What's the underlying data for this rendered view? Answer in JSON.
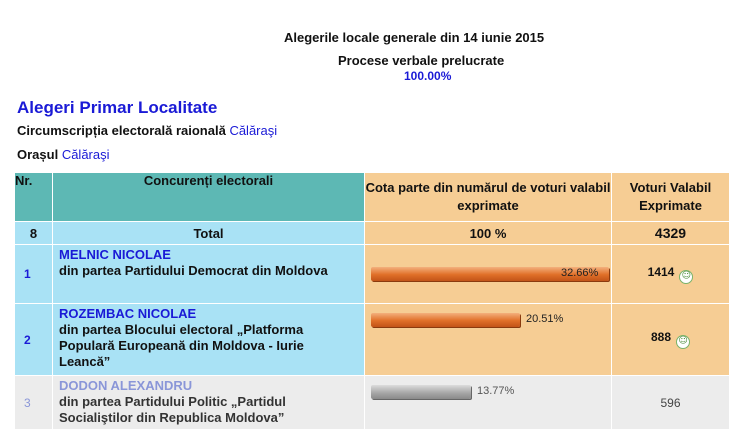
{
  "header": {
    "title": "Alegerile locale generale din 14 iunie 2015",
    "subtitle": "Procese verbale prelucrate",
    "processed_percent": "100.00%"
  },
  "section": {
    "title": "Alegeri Primar Localitate",
    "circumscription_label": "Circumscripția electorală raională",
    "circumscription_value": "Călăraşi",
    "city_label": "Orașul",
    "city_value": "Călăraşi"
  },
  "table": {
    "headers": {
      "nr": "Nr.",
      "competitors": "Concurenți electorali",
      "share": "Cota parte din numărul de voturi valabil exprimate",
      "votes": "Voturi Valabil Exprimate"
    },
    "total": {
      "nr": "8",
      "label": "Total",
      "share": "100 %",
      "votes": "4329"
    },
    "candidates": [
      {
        "nr": "1",
        "name": "MELNIC NICOLAE",
        "party": "din partea Partidului Democrat din Moldova",
        "share_label": "32.66%",
        "share": 32.66,
        "votes": "1414",
        "advancing": true,
        "icon": "smiley-icon"
      },
      {
        "nr": "2",
        "name": "ROZEMBAC NICOLAE",
        "party": "din partea Blocului electoral „Platforma Populară Europeană din Moldova - Iurie Leancă”",
        "share_label": "20.51%",
        "share": 20.51,
        "votes": "888",
        "advancing": true,
        "icon": "smiley-icon"
      },
      {
        "nr": "3",
        "name": "DODON ALEXANDRU",
        "party": "din partea Partidului Politic „Partidul Socialiştilor din Republica Moldova”",
        "share_label": "13.77%",
        "share": 13.77,
        "votes": "596",
        "advancing": false
      }
    ]
  },
  "colors": {
    "link": "#1a1ad6",
    "header_teal": "#5db8b4",
    "header_orange": "#f6cd94",
    "row_blue": "#a9e2f5",
    "row_grey": "#ececec",
    "bar_orange": "#e06f28",
    "bar_grey": "#a8a8a8"
  }
}
